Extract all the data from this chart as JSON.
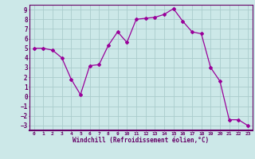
{
  "x": [
    0,
    1,
    2,
    3,
    4,
    5,
    6,
    7,
    8,
    9,
    10,
    11,
    12,
    13,
    14,
    15,
    16,
    17,
    18,
    19,
    20,
    21,
    22,
    23
  ],
  "y": [
    5.0,
    5.0,
    4.8,
    4.0,
    1.8,
    0.2,
    3.2,
    3.3,
    5.3,
    6.7,
    5.6,
    8.0,
    8.1,
    8.2,
    8.5,
    9.1,
    7.8,
    6.7,
    6.5,
    3.0,
    1.6,
    -2.4,
    -2.4,
    -3.0
  ],
  "line_color": "#990099",
  "marker": "D",
  "marker_size": 2,
  "bg_color": "#cce8e8",
  "grid_color": "#aacccc",
  "xlabel": "Windchill (Refroidissement éolien,°C)",
  "xlabel_color": "#660066",
  "tick_color": "#660066",
  "xlim": [
    -0.5,
    23.5
  ],
  "ylim": [
    -3.5,
    9.5
  ],
  "yticks": [
    9,
    8,
    7,
    6,
    5,
    4,
    3,
    2,
    1,
    0,
    -1,
    -2,
    -3
  ],
  "xticks": [
    0,
    1,
    2,
    3,
    4,
    5,
    6,
    7,
    8,
    9,
    10,
    11,
    12,
    13,
    14,
    15,
    16,
    17,
    18,
    19,
    20,
    21,
    22,
    23
  ]
}
